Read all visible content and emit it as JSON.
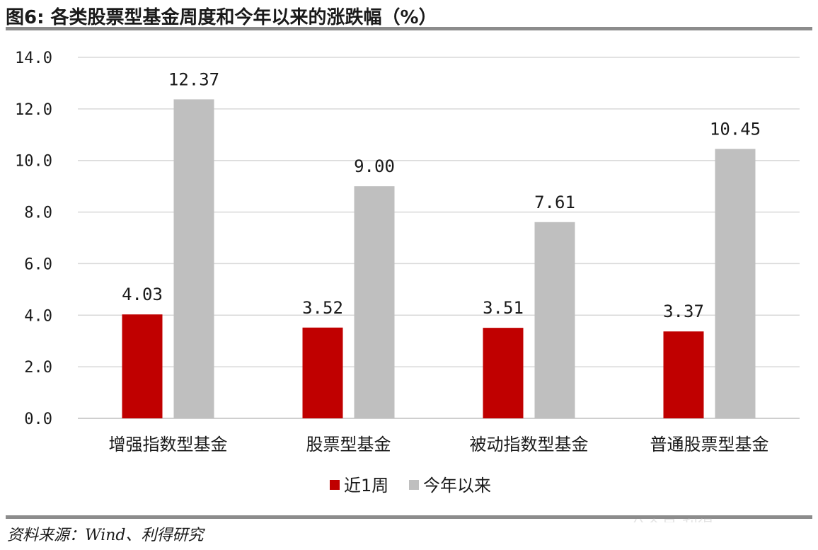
{
  "figure": {
    "title": "图6: 各类股票型基金周度和今年以来的涨跌幅（%）",
    "source": "资料来源：Wind、利得研究",
    "watermark": "一 公众号·利得"
  },
  "colors": {
    "series_1": "#c00000",
    "series_2": "#bfbfbf",
    "grid": "#d9d9d9",
    "rule": "#8c8c8c"
  },
  "chart_data": {
    "type": "bar",
    "title": "",
    "xlabel": "",
    "ylabel": "",
    "categories": [
      "增强指数型基金",
      "股票型基金",
      "被动指数型基金",
      "普通股票型基金"
    ],
    "series": [
      {
        "name": "近1周",
        "values": [
          4.03,
          3.52,
          3.51,
          3.37
        ],
        "labels": [
          "4.03",
          "3.52",
          "3.51",
          "3.37"
        ]
      },
      {
        "name": "今年以来",
        "values": [
          12.37,
          9.0,
          7.61,
          10.45
        ],
        "labels": [
          "12.37",
          "9.00",
          "7.61",
          "10.45"
        ]
      }
    ],
    "ylim": [
      0,
      14
    ],
    "yticks": [
      "0.0",
      "2.0",
      "4.0",
      "6.0",
      "8.0",
      "10.0",
      "12.0",
      "14.0"
    ],
    "grid": true,
    "legend_position": "bottom"
  }
}
